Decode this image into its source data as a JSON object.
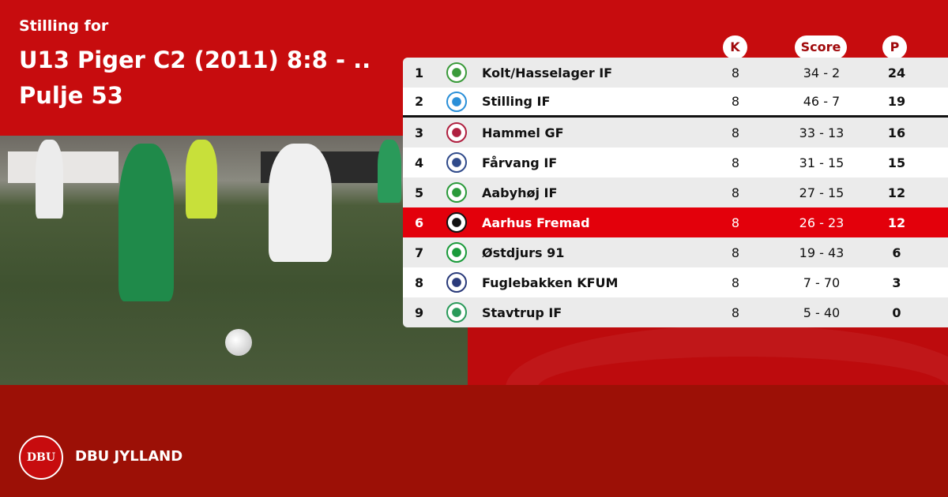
{
  "header": {
    "subtitle": "Stilling for",
    "title": "U13 Piger C2 (2011) 8:8 - .. Pulje 53"
  },
  "columns": {
    "k": "K",
    "score": "Score",
    "p": "P"
  },
  "standings": [
    {
      "pos": "1",
      "team": "Kolt/Hasselager IF",
      "k": "8",
      "score": "34 - 2",
      "p": "24",
      "logo": "#3a9a3a"
    },
    {
      "pos": "2",
      "team": "Stilling IF",
      "k": "8",
      "score": "46 - 7",
      "p": "19",
      "logo": "#2a8fd8"
    },
    {
      "pos": "3",
      "team": "Hammel GF",
      "k": "8",
      "score": "33 - 13",
      "p": "16",
      "logo": "#b02040"
    },
    {
      "pos": "4",
      "team": "Fårvang IF",
      "k": "8",
      "score": "31 - 15",
      "p": "15",
      "logo": "#304a8a"
    },
    {
      "pos": "5",
      "team": "Aabyhøj IF",
      "k": "8",
      "score": "27 - 15",
      "p": "12",
      "logo": "#2a9a3a"
    },
    {
      "pos": "6",
      "team": "Aarhus Fremad",
      "k": "8",
      "score": "26 - 23",
      "p": "12",
      "logo": "#111111",
      "highlight": true
    },
    {
      "pos": "7",
      "team": "Østdjurs 91",
      "k": "8",
      "score": "19 - 43",
      "p": "6",
      "logo": "#1a9a3a"
    },
    {
      "pos": "8",
      "team": "Fuglebakken KFUM",
      "k": "8",
      "score": "7 - 70",
      "p": "3",
      "logo": "#2a3a7a"
    },
    {
      "pos": "9",
      "team": "Stavtrup IF",
      "k": "8",
      "score": "5 - 40",
      "p": "0",
      "logo": "#2a9a5a"
    }
  ],
  "footer": {
    "brand": "DBU JYLLAND",
    "seal_text": "DBU"
  },
  "colors": {
    "top": "#c70c0e",
    "bottom": "#9c1006",
    "highlight": "#e3000b"
  }
}
